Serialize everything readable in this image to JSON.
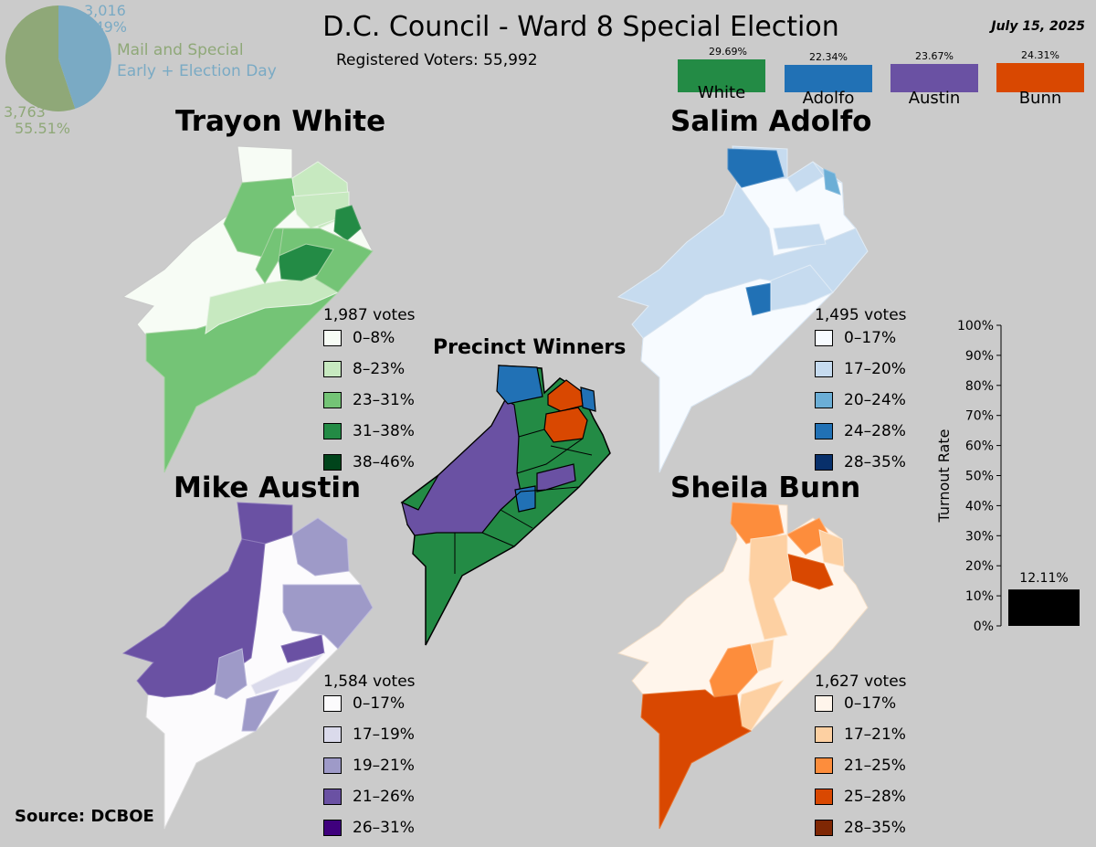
{
  "title": "D.C. Council - Ward 8 Special Election",
  "date": "July 15, 2025",
  "registered_voters": "Registered Voters: 55,992",
  "source": "Source: DCBOE",
  "pie": {
    "mail_label": "Mail and Special",
    "early_label": "Early + Election Day",
    "mail_count": "3,763",
    "mail_pct": "55.51%",
    "early_count": "3,016",
    "early_pct": "44.49%",
    "mail_color": "#8fa878",
    "early_color": "#7aaac4"
  },
  "candidate_bars": [
    {
      "name": "White",
      "pct": "29.69%",
      "color": "#238b45"
    },
    {
      "name": "Adolfo",
      "pct": "22.34%",
      "color": "#2171b5"
    },
    {
      "name": "Austin",
      "pct": "23.67%",
      "color": "#6a51a3"
    },
    {
      "name": "Bunn",
      "pct": "24.31%",
      "color": "#d94801"
    }
  ],
  "maps": {
    "white": {
      "title": "Trayon White",
      "votes": "1,987 votes",
      "legend": [
        {
          "label": "0–8%",
          "color": "#f7fcf5"
        },
        {
          "label": "8–23%",
          "color": "#c7e9c0"
        },
        {
          "label": "23–31%",
          "color": "#74c476"
        },
        {
          "label": "31–38%",
          "color": "#238b45"
        },
        {
          "label": "38–46%",
          "color": "#00441b"
        }
      ]
    },
    "adolfo": {
      "title": "Salim Adolfo",
      "votes": "1,495 votes",
      "legend": [
        {
          "label": "0–17%",
          "color": "#f7fbff"
        },
        {
          "label": "17–20%",
          "color": "#c6dbef"
        },
        {
          "label": "20–24%",
          "color": "#6baed6"
        },
        {
          "label": "24–28%",
          "color": "#2171b5"
        },
        {
          "label": "28–35%",
          "color": "#08306b"
        }
      ]
    },
    "austin": {
      "title": "Mike Austin",
      "votes": "1,584 votes",
      "legend": [
        {
          "label": "0–17%",
          "color": "#fcfbfd"
        },
        {
          "label": "17–19%",
          "color": "#dadaeb"
        },
        {
          "label": "19–21%",
          "color": "#9e9ac8"
        },
        {
          "label": "21–26%",
          "color": "#6a51a3"
        },
        {
          "label": "26–31%",
          "color": "#3f007d"
        }
      ]
    },
    "bunn": {
      "title": "Sheila Bunn",
      "votes": "1,627 votes",
      "legend": [
        {
          "label": "0–17%",
          "color": "#fff5eb"
        },
        {
          "label": "17–21%",
          "color": "#fdd0a2"
        },
        {
          "label": "21–25%",
          "color": "#fd8d3c"
        },
        {
          "label": "25–28%",
          "color": "#d94801"
        },
        {
          "label": "28–35%",
          "color": "#7f2704"
        }
      ]
    },
    "winners": {
      "title": "Precinct Winners"
    }
  },
  "chart_data": {
    "type": "bar",
    "categories": [
      ""
    ],
    "values": [
      12.11
    ],
    "data_labels": [
      "12.11%"
    ],
    "ylabel": "Turnout Rate",
    "ylim": [
      0,
      100
    ],
    "yticks": [
      "0%",
      "10%",
      "20%",
      "30%",
      "40%",
      "50%",
      "60%",
      "70%",
      "80%",
      "90%",
      "100%"
    ],
    "bar_color": "#000000"
  }
}
